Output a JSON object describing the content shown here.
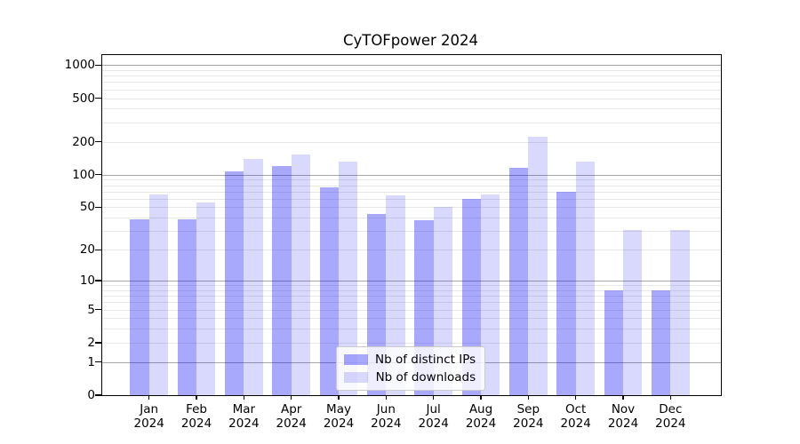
{
  "title": "CyTOFpower 2024",
  "legend": {
    "items": [
      {
        "label": "Nb of distinct IPs"
      },
      {
        "label": "Nb of downloads"
      }
    ]
  },
  "chart_data": {
    "type": "bar",
    "title": "CyTOFpower 2024",
    "xlabel": "",
    "ylabel": "",
    "yscale": "log1p",
    "ylim": [
      0,
      1233
    ],
    "grid": true,
    "legend_position": "lower center",
    "categories": [
      "Jan",
      "Feb",
      "Mar",
      "Apr",
      "May",
      "Jun",
      "Jul",
      "Aug",
      "Sep",
      "Oct",
      "Nov",
      "Dec"
    ],
    "year_suffix": "2024",
    "y_tick_values": [
      1000,
      500,
      200,
      100,
      50,
      20,
      10,
      5,
      2,
      1,
      0
    ],
    "y_tick_labels": [
      "1000",
      "500",
      "200",
      "100",
      "50",
      "20",
      "10",
      "5",
      "2",
      "1",
      "0"
    ],
    "series": [
      {
        "name": "Nb of distinct IPs",
        "color": "rgba(0,0,250,0.34)",
        "values": [
          39,
          39,
          108,
          121,
          76,
          43,
          38,
          60,
          116,
          70,
          8,
          8
        ]
      },
      {
        "name": "Nb of downloads",
        "color": "rgba(0,0,250,0.15)",
        "values": [
          66,
          55,
          139,
          152,
          132,
          64,
          50,
          66,
          221,
          132,
          31,
          31
        ]
      }
    ]
  }
}
